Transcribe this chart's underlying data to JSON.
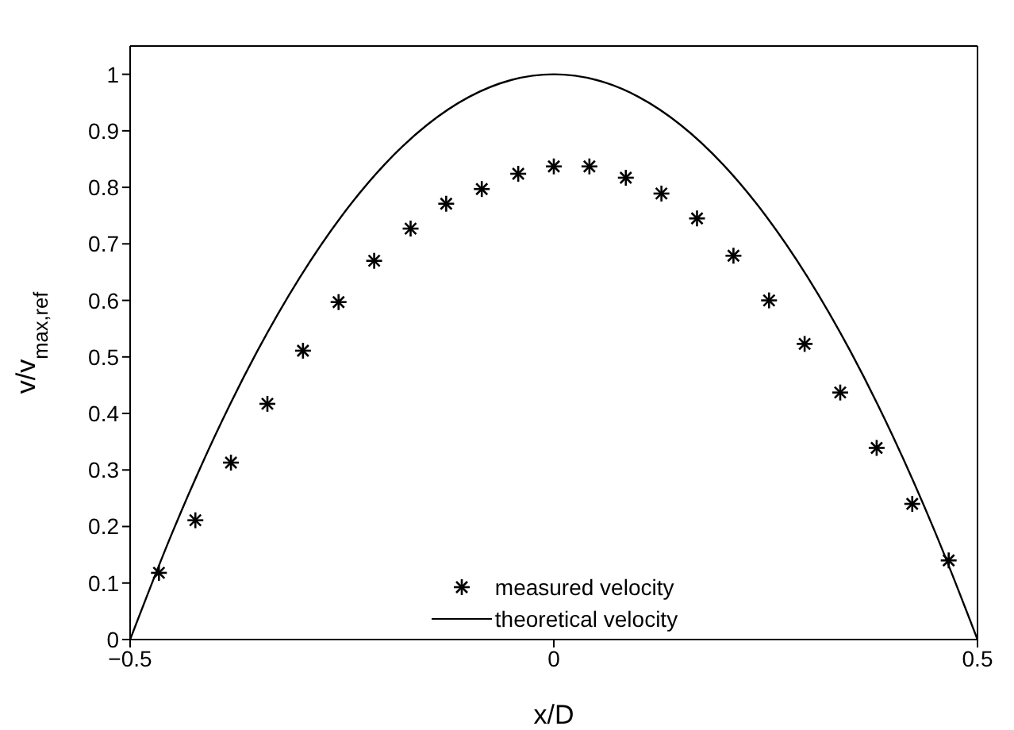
{
  "chart_data": {
    "type": "scatter",
    "xlabel": "x/D",
    "ylabel": "v/v$_{max,ref}$",
    "xlim": [
      -0.5,
      0.5
    ],
    "xticks": [
      -0.5,
      0,
      0.5
    ],
    "ylim": [
      0,
      1.05
    ],
    "yticks": [
      0,
      0.1,
      0.2,
      0.3,
      0.4,
      0.5,
      0.6,
      0.7,
      0.8,
      0.9,
      1
    ],
    "legend": "bottom",
    "series": [
      {
        "name": "measured velocity",
        "marker": "cross",
        "color": "#000000",
        "x": [
          -0.466,
          -0.423,
          -0.381,
          -0.338,
          -0.296,
          -0.254,
          -0.212,
          -0.169,
          -0.127,
          -0.085,
          -0.042,
          0,
          0.042,
          0.085,
          0.127,
          0.169,
          0.212,
          0.254,
          0.296,
          0.338,
          0.381,
          0.423,
          0.466
        ],
        "values": [
          0.118,
          0.211,
          0.313,
          0.417,
          0.511,
          0.597,
          0.67,
          0.727,
          0.771,
          0.797,
          0.824,
          0.837,
          0.837,
          0.817,
          0.789,
          0.745,
          0.679,
          0.6,
          0.523,
          0.437,
          0.339,
          0.24,
          0.14
        ]
      },
      {
        "name": "theoretical velocity",
        "type": "line",
        "marker": "none",
        "line_style": "solid",
        "color": "#000000",
        "x": [
          -0.5,
          -0.45,
          -0.4,
          -0.35,
          -0.3,
          -0.25,
          -0.2,
          -0.15,
          -0.1,
          -0.05,
          0,
          0.05,
          0.1,
          0.15,
          0.2,
          0.25,
          0.3,
          0.35,
          0.4,
          0.45,
          0.5
        ],
        "values": [
          0,
          0.19,
          0.36,
          0.51,
          0.64,
          0.75,
          0.84,
          0.91,
          0.96,
          0.99,
          1,
          0.99,
          0.96,
          0.91,
          0.84,
          0.75,
          0.64,
          0.51,
          0.36,
          0.19,
          0
        ]
      }
    ]
  }
}
